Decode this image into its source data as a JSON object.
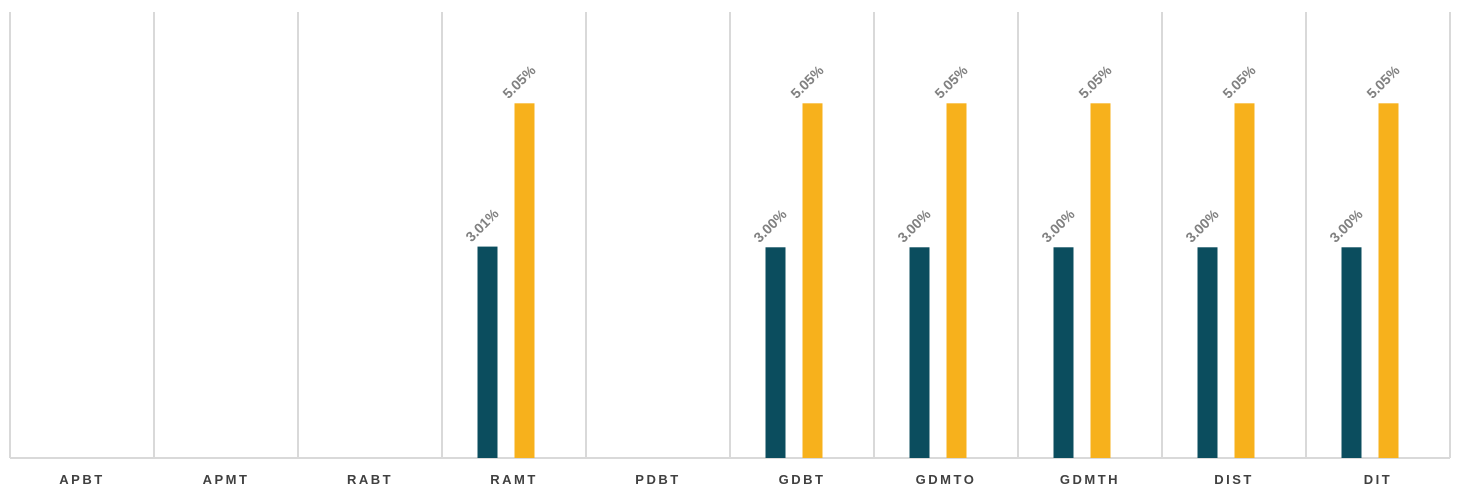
{
  "chart_data": {
    "type": "bar",
    "categories": [
      "APBT",
      "APMT",
      "RABT",
      "RAMT",
      "PDBT",
      "GDBT",
      "GDMTO",
      "GDMTH",
      "DIST",
      "DIT"
    ],
    "series": [
      {
        "color": "#0b4d5e",
        "values": [
          null,
          null,
          null,
          3.01,
          null,
          3.0,
          3.0,
          3.0,
          3.0,
          3.0
        ]
      },
      {
        "color": "#f7b11c",
        "values": [
          null,
          null,
          null,
          5.05,
          null,
          5.05,
          5.05,
          5.05,
          5.05,
          5.05
        ]
      }
    ],
    "data_labels": [
      [
        null,
        null,
        null,
        "3.01%",
        null,
        "3.00%",
        "3.00%",
        "3.00%",
        "3.00%",
        "3.00%"
      ],
      [
        null,
        null,
        null,
        "5.05%",
        null,
        "5.05%",
        "5.05%",
        "5.05%",
        "5.05%",
        "5.05%"
      ]
    ],
    "ylim": [
      0,
      6.35
    ],
    "grid": "vertical category separators",
    "legend": "none"
  },
  "colors": {
    "grid": "#d9d9d9",
    "axis_label": "#404040",
    "data_label": "#808080"
  }
}
